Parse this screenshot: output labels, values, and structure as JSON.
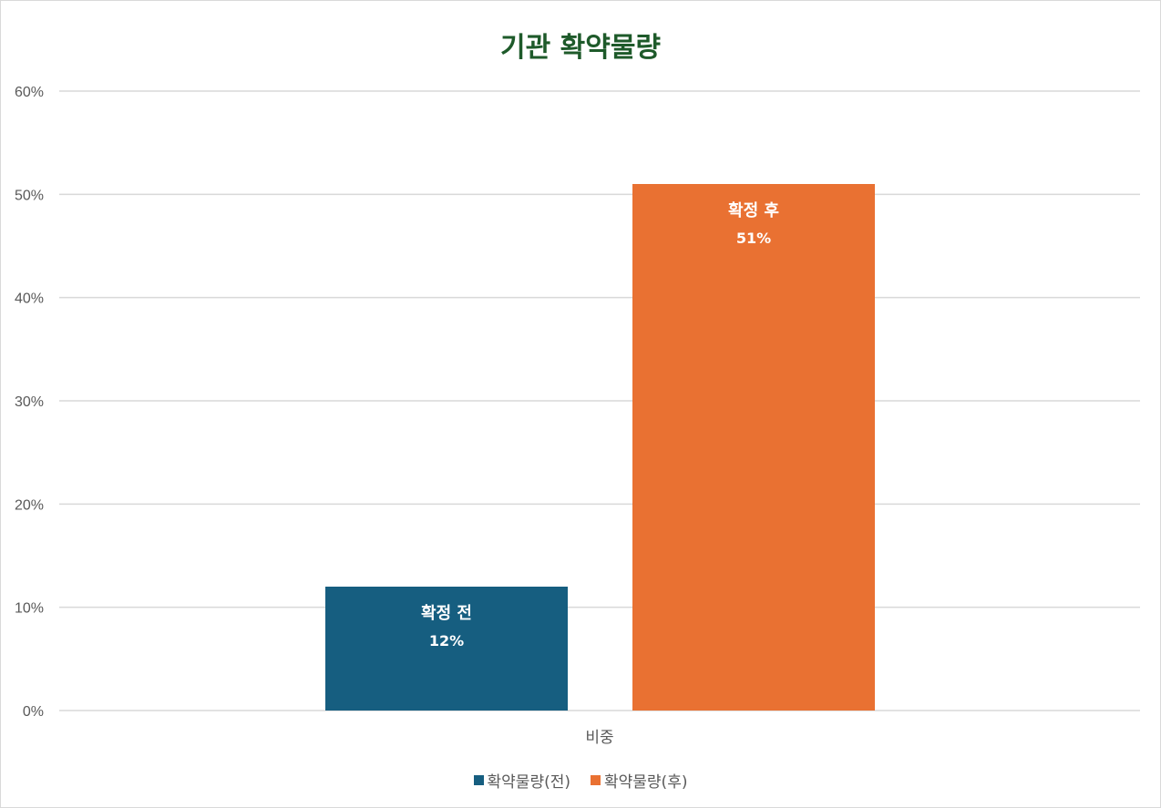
{
  "chart_data": {
    "type": "bar",
    "title": "기관 확약물량",
    "categories": [
      "비중"
    ],
    "series": [
      {
        "name": "확약물량(전)",
        "values": [
          0.12
        ],
        "color": "#165e80",
        "label_name": "확정 전",
        "label_value": "12%"
      },
      {
        "name": "확약물량(후)",
        "values": [
          0.51
        ],
        "color": "#e97132",
        "label_name": "확정 후",
        "label_value": "51%"
      }
    ],
    "ylim": [
      0,
      0.6
    ],
    "yticks": [
      "0%",
      "10%",
      "20%",
      "30%",
      "40%",
      "50%",
      "60%"
    ],
    "xlabel": "",
    "ylabel": "",
    "grid": true,
    "legend_position": "bottom"
  }
}
